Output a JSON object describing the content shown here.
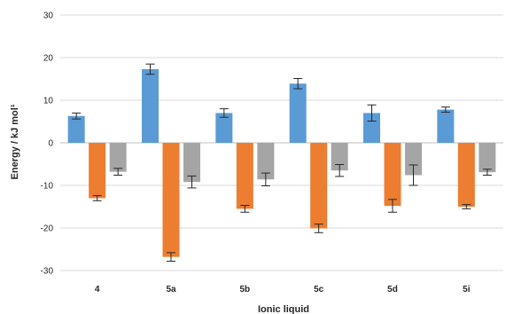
{
  "chart_data": {
    "type": "bar",
    "title": "",
    "xlabel": "Ionic liquid",
    "ylabel": "Energy / kJ mol¹",
    "ylim": [
      -30,
      30
    ],
    "yticks": [
      30,
      20,
      10,
      0,
      -10,
      -20,
      -30
    ],
    "grid": true,
    "legend": "none",
    "categories": [
      "4",
      "5a",
      "5b",
      "5c",
      "5d",
      "5i"
    ],
    "series": [
      {
        "color": "#5b9bd5",
        "values": [
          6.3,
          17.3,
          7.0,
          13.9,
          7.0,
          7.8
        ],
        "errors": [
          0.7,
          1.2,
          1.0,
          1.2,
          1.9,
          0.6
        ]
      },
      {
        "color": "#ed7d31",
        "values": [
          -13.0,
          -26.8,
          -15.5,
          -20.1,
          -14.8,
          -15.0
        ],
        "errors": [
          0.6,
          1.0,
          0.8,
          1.0,
          1.5,
          0.5
        ]
      },
      {
        "color": "#a5a5a5",
        "values": [
          -6.8,
          -9.2,
          -8.6,
          -6.5,
          -7.6,
          -6.9
        ],
        "errors": [
          0.8,
          1.4,
          1.5,
          1.4,
          2.4,
          0.7
        ]
      }
    ]
  }
}
